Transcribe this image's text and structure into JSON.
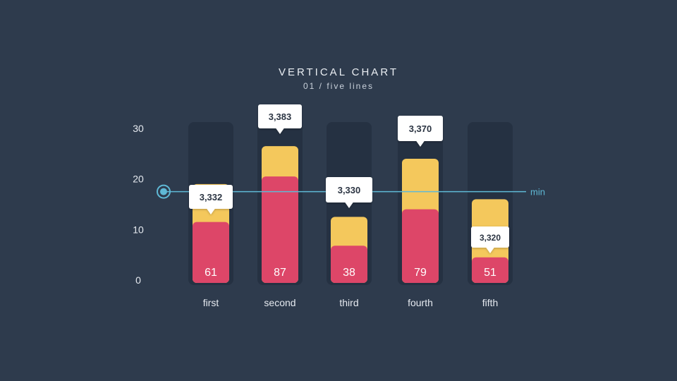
{
  "chart_data": {
    "type": "bar",
    "title": "VERTICAL CHART",
    "subtitle": "01 / five lines",
    "categories": [
      "first",
      "second",
      "third",
      "fourth",
      "fifth"
    ],
    "ylim": [
      0,
      30
    ],
    "yticks": [
      0,
      10,
      20,
      30
    ],
    "series": [
      {
        "values": [
          11.5,
          20.5,
          6.8,
          14.0,
          4.5
        ],
        "labels": [
          "61",
          "87",
          "38",
          "79",
          "51"
        ]
      },
      {
        "values": [
          19.0,
          26.5,
          12.5,
          24.0,
          16.0
        ]
      }
    ],
    "callouts": [
      "3,332",
      "3,383",
      "3,330",
      "3,370",
      "3,320"
    ],
    "reference_line": {
      "value": 17.5,
      "label": "min",
      "color": "#5fb9d6"
    },
    "colors": {
      "track": "#253142",
      "lower": "#dd4668",
      "upper": "#f4c85c",
      "callout": "#ffffff"
    }
  }
}
